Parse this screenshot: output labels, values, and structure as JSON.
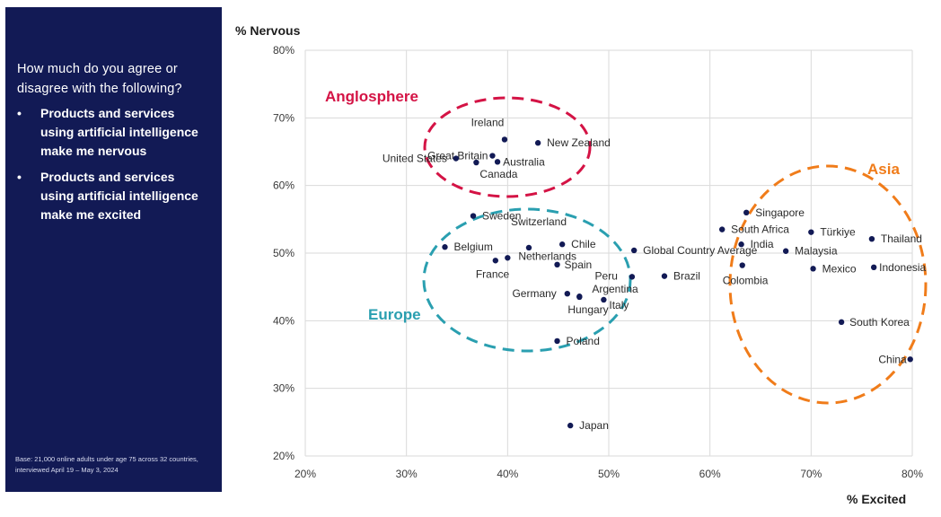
{
  "sidebar": {
    "question": "How much do you agree or disagree with the following?",
    "statements": [
      "Products and services using artificial intelligence make me nervous",
      "Products and services using artificial intelligence make me excited"
    ],
    "footnote": "Base: 21,000 online adults under age 75 across 32 countries, interviewed April 19 – May 3, 2024"
  },
  "chart_data": {
    "type": "scatter",
    "xlabel": "% Excited",
    "ylabel": "% Nervous",
    "xlim": [
      20,
      80
    ],
    "ylim": [
      20,
      80
    ],
    "x_ticks": [
      "20%",
      "30%",
      "40%",
      "50%",
      "60%",
      "70%",
      "80%"
    ],
    "y_ticks": [
      "20%",
      "30%",
      "40%",
      "50%",
      "60%",
      "70%",
      "80%"
    ],
    "grid": true,
    "points": [
      {
        "name": "Ireland",
        "x": 39.7,
        "y": 66.8
      },
      {
        "name": "New Zealand",
        "x": 43.0,
        "y": 66.3
      },
      {
        "name": "Great Britain",
        "x": 38.5,
        "y": 64.4
      },
      {
        "name": "United States",
        "x": 34.9,
        "y": 64.0
      },
      {
        "name": "Australia",
        "x": 39.0,
        "y": 63.5
      },
      {
        "name": "Canada",
        "x": 36.9,
        "y": 63.4
      },
      {
        "name": "Sweden",
        "x": 36.6,
        "y": 55.5
      },
      {
        "name": "Switzerland",
        "x": 42.1,
        "y": 50.8
      },
      {
        "name": "Chile",
        "x": 45.4,
        "y": 51.3
      },
      {
        "name": "Belgium",
        "x": 33.8,
        "y": 50.9
      },
      {
        "name": "Netherlands",
        "x": 40.0,
        "y": 49.3
      },
      {
        "name": "France",
        "x": 38.8,
        "y": 48.9
      },
      {
        "name": "Spain",
        "x": 44.9,
        "y": 48.3
      },
      {
        "name": "Germany",
        "x": 45.9,
        "y": 44.0
      },
      {
        "name": "Argentina",
        "x": 47.1,
        "y": 43.6
      },
      {
        "name": "Italy",
        "x": 49.5,
        "y": 43.1
      },
      {
        "name": "Hungary",
        "x": 47.1,
        "y": 43.5
      },
      {
        "name": "Poland",
        "x": 44.9,
        "y": 37.0
      },
      {
        "name": "Japan",
        "x": 46.2,
        "y": 24.5
      },
      {
        "name": "Global Country Average",
        "x": 52.5,
        "y": 50.4
      },
      {
        "name": "Brazil",
        "x": 55.5,
        "y": 46.6
      },
      {
        "name": "Peru",
        "x": 52.3,
        "y": 46.5
      },
      {
        "name": "Singapore",
        "x": 63.6,
        "y": 56.0
      },
      {
        "name": "South Africa",
        "x": 61.2,
        "y": 53.5
      },
      {
        "name": "India",
        "x": 63.1,
        "y": 51.3
      },
      {
        "name": "Colombia",
        "x": 63.2,
        "y": 48.2
      },
      {
        "name": "Türkiye",
        "x": 70.0,
        "y": 53.1
      },
      {
        "name": "Malaysia",
        "x": 67.5,
        "y": 50.3
      },
      {
        "name": "Thailand",
        "x": 76.0,
        "y": 52.1
      },
      {
        "name": "Mexico",
        "x": 70.2,
        "y": 47.7
      },
      {
        "name": "Indonesia",
        "x": 76.2,
        "y": 47.9
      },
      {
        "name": "South Korea",
        "x": 73.0,
        "y": 39.8
      },
      {
        "name": "China",
        "x": 79.8,
        "y": 34.3
      }
    ],
    "groups": [
      {
        "name": "Anglosphere",
        "color": "#d41345"
      },
      {
        "name": "Europe",
        "color": "#2a9fb0"
      },
      {
        "name": "Asia",
        "color": "#f07c1a"
      }
    ]
  }
}
